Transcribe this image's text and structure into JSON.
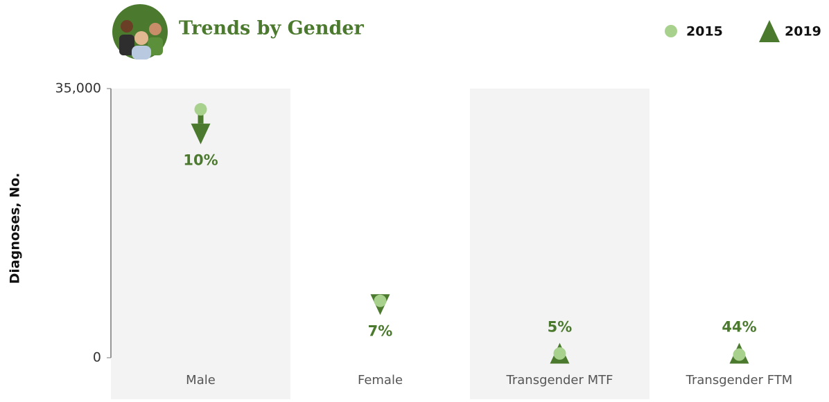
{
  "chart_data": {
    "type": "dotplot",
    "title": "Trends by Gender",
    "y_label": "Diagnoses, No.",
    "categories": [
      "Male",
      "Female",
      "Transgender MTF",
      "Transgender FTM"
    ],
    "series": [
      {
        "name": "2015",
        "color": "#a9d18e",
        "marker": "circle",
        "values": [
          32300,
          7400,
          550,
          400
        ]
      },
      {
        "name": "2019",
        "color": "#4b7a2f",
        "marker": "triangle",
        "values": [
          29100,
          6900,
          580,
          580
        ]
      }
    ],
    "annotations": [
      "10%",
      "7%",
      "5%",
      "44%"
    ],
    "ylim": [
      0,
      35000
    ],
    "yticks": [
      0,
      {
        "value": 35000,
        "label": "35,000"
      }
    ]
  }
}
